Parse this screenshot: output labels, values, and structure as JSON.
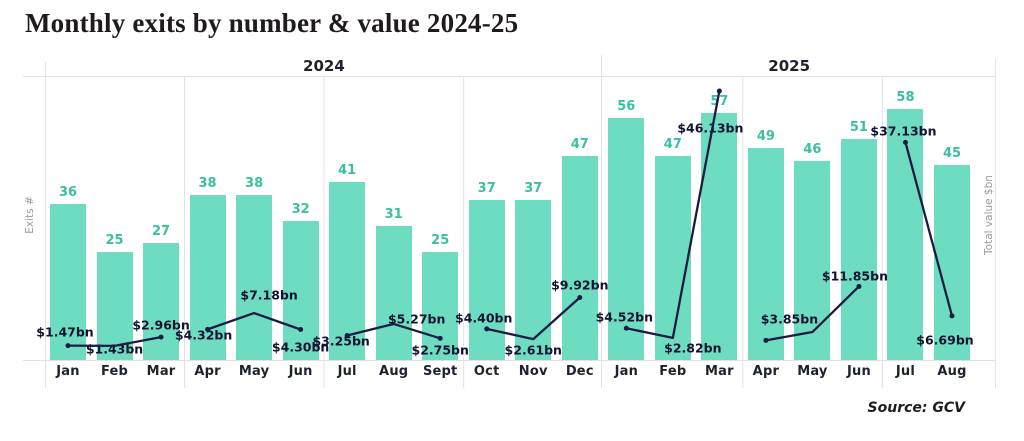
{
  "title": "Monthly exits by number & value 2024-25",
  "source": "Source: GCV",
  "axes": {
    "left": "Exits #",
    "right": "Total value $bn"
  },
  "year_groups": [
    {
      "label": "2024",
      "months": 12
    },
    {
      "label": "2025",
      "months": 8
    }
  ],
  "colors": {
    "bar": "#6edcc1",
    "bar_label": "#3bbfa2",
    "line": "#1b1c44",
    "line_label": "#121330",
    "grid": "#e2e2e2",
    "month_label": "#1e2130",
    "title": "#1f1a1c",
    "axis_text": "#9b9b9b"
  },
  "chart_data": {
    "type": "combo_bar_line",
    "title": "Monthly exits by number & value 2024-25",
    "categories": [
      "Jan",
      "Feb",
      "Mar",
      "Apr",
      "May",
      "Jun",
      "Jul",
      "Aug",
      "Sept",
      "Oct",
      "Nov",
      "Dec",
      "Jan",
      "Feb",
      "Mar",
      "Apr",
      "May",
      "Jun",
      "Jul",
      "Aug"
    ],
    "category_years": [
      "2024",
      "2024",
      "2024",
      "2024",
      "2024",
      "2024",
      "2024",
      "2024",
      "2024",
      "2024",
      "2024",
      "2024",
      "2025",
      "2025",
      "2025",
      "2025",
      "2025",
      "2025",
      "2025",
      "2025"
    ],
    "series": [
      {
        "name": "Exits #",
        "type": "bar",
        "values": [
          36,
          25,
          27,
          38,
          38,
          32,
          41,
          31,
          25,
          37,
          37,
          47,
          56,
          47,
          57,
          49,
          46,
          51,
          58,
          45
        ]
      },
      {
        "name": "Total value $bn",
        "type": "line",
        "values": [
          1.47,
          1.43,
          2.96,
          4.32,
          7.18,
          4.3,
          3.25,
          5.27,
          2.75,
          4.4,
          2.61,
          9.92,
          4.52,
          2.82,
          46.13,
          2.4,
          3.85,
          11.85,
          37.13,
          6.69
        ],
        "labels": [
          "$1.47bn",
          "$1.43bn",
          "$2.96bn",
          "$4.32bn",
          "$7.18bn",
          "$4.30bn",
          "$3.25bn",
          "$5.27bn",
          "$2.75bn",
          "$4.40bn",
          "$2.61bn",
          "$9.92bn",
          "$4.52bn",
          "$2.82bn",
          "$46.13bn",
          null,
          "$3.85bn",
          "$11.85bn",
          "$37.13bn",
          "$6.69bn"
        ],
        "label_offsets": [
          [
            -3,
            -14
          ],
          [
            0,
            3
          ],
          [
            0,
            -12
          ],
          [
            -4,
            6
          ],
          [
            15,
            -18
          ],
          [
            0,
            18
          ],
          [
            -6,
            6
          ],
          [
            23,
            -5
          ],
          [
            0,
            12
          ],
          [
            -3,
            -11
          ],
          [
            0,
            11
          ],
          [
            0,
            -12
          ],
          [
            -2,
            -11
          ],
          [
            20,
            10
          ],
          [
            -9,
            37
          ],
          null,
          [
            -23,
            -13
          ],
          [
            -4,
            -10
          ],
          [
            -2,
            -11
          ],
          [
            -7,
            24
          ]
        ],
        "segments": [
          [
            0,
            2
          ],
          [
            3,
            5
          ],
          [
            6,
            8
          ],
          [
            9,
            11
          ],
          [
            12,
            14
          ],
          [
            15,
            17
          ],
          [
            18,
            19
          ]
        ]
      }
    ],
    "xlabel": "",
    "ylabel_left": "Exits #",
    "ylabel_right": "Total value $bn",
    "legend": "none",
    "grid": "quarter-separators"
  }
}
